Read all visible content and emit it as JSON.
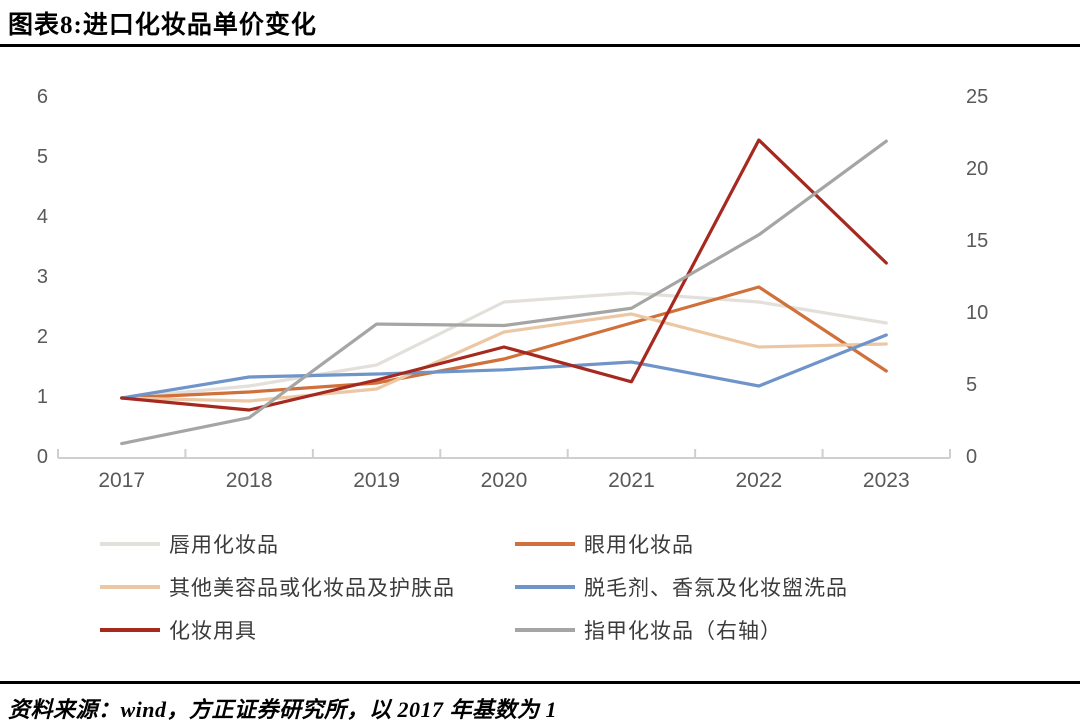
{
  "header": {
    "title": "图表8:进口化妆品单价变化"
  },
  "footer": {
    "source": "资料来源：wind，方正证券研究所，以 2017 年基数为 1"
  },
  "chart_data": {
    "type": "line",
    "title": "进口化妆品单价变化",
    "categories": [
      "2017",
      "2018",
      "2019",
      "2020",
      "2021",
      "2022",
      "2023"
    ],
    "left_axis": {
      "ticks": [
        0,
        1,
        2,
        3,
        4,
        5,
        6
      ],
      "range": [
        0,
        6
      ]
    },
    "right_axis": {
      "ticks": [
        0,
        5,
        10,
        15,
        20,
        25
      ],
      "range": [
        0,
        25
      ],
      "label": "右轴"
    },
    "grid": "off",
    "legend_position": "bottom",
    "note": "以2017年基数为1",
    "series": [
      {
        "name": "唇用化妆品",
        "axis": "left",
        "color": "#e3e0db",
        "values": [
          1.0,
          1.2,
          1.55,
          2.6,
          2.75,
          2.6,
          2.25
        ]
      },
      {
        "name": "眼用化妆品",
        "axis": "left",
        "color": "#d0703a",
        "values": [
          1.0,
          1.1,
          1.25,
          1.65,
          2.25,
          2.85,
          1.45
        ]
      },
      {
        "name": "其他美容品或化妆品及护肤品",
        "axis": "left",
        "color": "#ecc7a4",
        "values": [
          1.0,
          0.95,
          1.15,
          2.1,
          2.4,
          1.85,
          1.9
        ]
      },
      {
        "name": "脱毛剂、香氛及化妆盥洗品",
        "axis": "left",
        "color": "#6e94c9",
        "values": [
          1.0,
          1.35,
          1.4,
          1.47,
          1.6,
          1.2,
          2.05
        ]
      },
      {
        "name": "化妆用具",
        "axis": "left",
        "color": "#a5291f",
        "values": [
          1.0,
          0.8,
          1.3,
          1.85,
          1.27,
          5.3,
          3.25
        ]
      },
      {
        "name": "指甲化妆品（右轴）",
        "axis": "right",
        "color": "#a5a5a3",
        "values": [
          1.0,
          2.8,
          9.3,
          9.2,
          10.4,
          15.5,
          22.0
        ]
      }
    ],
    "colors": {
      "axis_text": "#595959",
      "axis_line": "#d0cece",
      "rule": "#000000"
    }
  }
}
